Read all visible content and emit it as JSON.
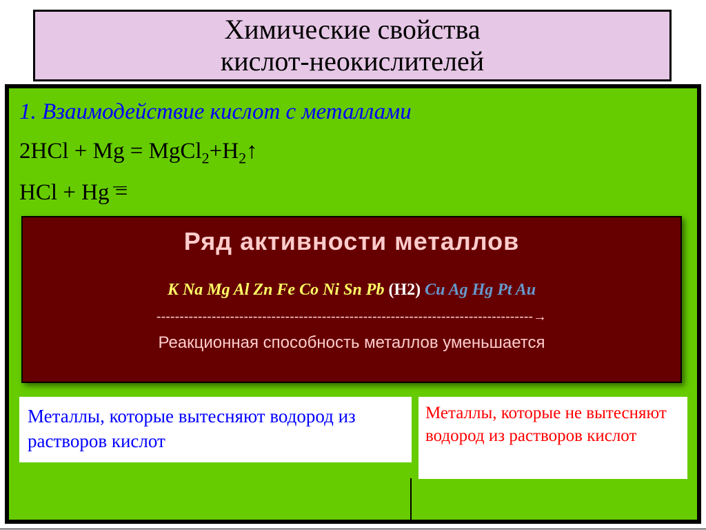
{
  "title": "Химические свойства\nкислот-неокислителей",
  "content": {
    "heading": "1. Взаимодействие кислот с металлами",
    "eq1_prefix": "2HCl + Mg = MgCl",
    "eq1_sub1": "2",
    "eq1_mid": "+H",
    "eq1_sub2": "2",
    "eq1_arrow": "↑",
    "eq2_prefix": "HCl + Hg ",
    "eq2_eq": "=",
    "eq2_slash": "/"
  },
  "activity": {
    "title": "Ряд активности металлов",
    "series_active": "K Na Mg Al Zn Fe Co Ni Sn Pb ",
    "series_h2": "(H2) ",
    "series_inactive": "Cu Ag Hg Pt Au",
    "arrow_line": "----------------------------------------------------------------------------------→",
    "caption": "Реакционная способность металлов уменьшается",
    "bg_color": "#660000",
    "text_color": "#ffcccc",
    "active_color": "#ffff66",
    "inactive_color": "#6699cc",
    "h2_color": "#ffffff"
  },
  "notes": {
    "left": "Металлы, которые вытесняют водород из растворов кислот",
    "right": "Металлы, которые не вытесняют водород из растворов кислот",
    "left_color": "#0000ff",
    "right_color": "#ff0000",
    "note_bg": "#ffffff"
  },
  "colors": {
    "title_bg": "#e6c7e6",
    "content_bg": "#66cc00",
    "border": "#000000",
    "heading_color": "#0000ff",
    "body_color": "#000000"
  },
  "fonts": {
    "title_size": 40,
    "heading_size": 33,
    "body_size": 33,
    "activity_title_size": 36,
    "series_size": 24,
    "caption_size": 24,
    "note_left_size": 27,
    "note_right_size": 25
  }
}
